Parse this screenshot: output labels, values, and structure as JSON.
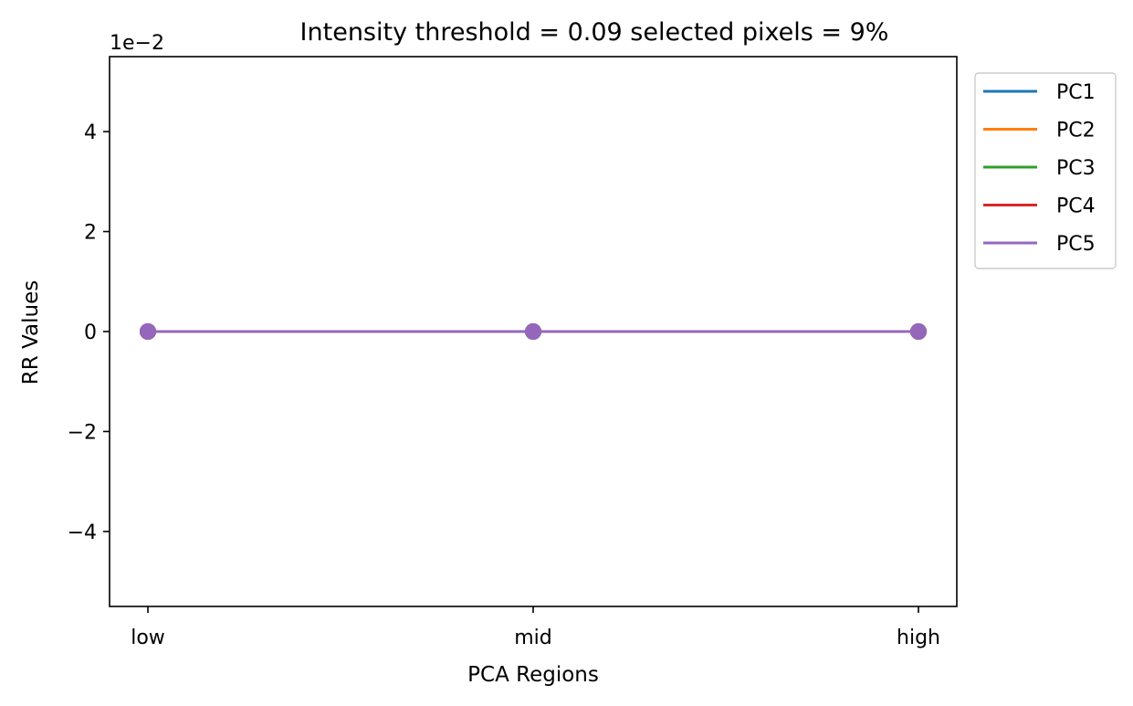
{
  "chart_data": {
    "type": "line",
    "title": "Intensity threshold = 0.09 selected pixels = 9%",
    "xlabel": "PCA Regions",
    "ylabel": "RR Values",
    "offset_text": "1e−2",
    "categories": [
      "low",
      "mid",
      "high"
    ],
    "ylim": [
      -0.055,
      0.055
    ],
    "yticks": [
      -0.04,
      -0.02,
      0,
      0.02,
      0.04
    ],
    "ytick_labels": [
      "−4",
      "−2",
      "0",
      "2",
      "4"
    ],
    "grid": false,
    "legend_position": "outside-top-right",
    "markers": true,
    "series": [
      {
        "name": "PC1",
        "color": "#1f77b4",
        "values": [
          0,
          0,
          0
        ]
      },
      {
        "name": "PC2",
        "color": "#ff7f0e",
        "values": [
          0,
          0,
          0
        ]
      },
      {
        "name": "PC3",
        "color": "#2ca02c",
        "values": [
          0,
          0,
          0
        ]
      },
      {
        "name": "PC4",
        "color": "#d62728",
        "values": [
          0,
          0,
          0
        ]
      },
      {
        "name": "PC5",
        "color": "#9467bd",
        "values": [
          0,
          0,
          0
        ]
      }
    ]
  }
}
